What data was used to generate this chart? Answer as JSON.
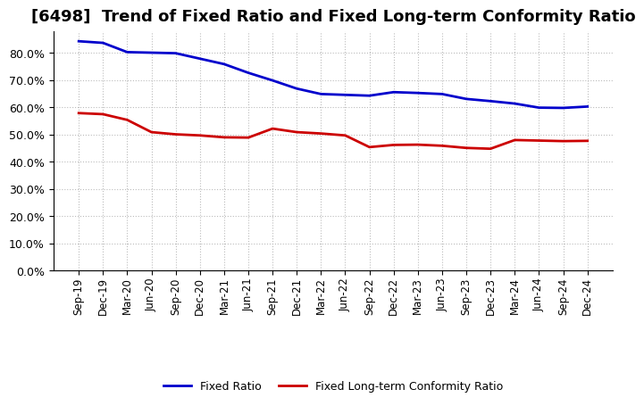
{
  "title": "[6498]  Trend of Fixed Ratio and Fixed Long-term Conformity Ratio",
  "x_labels": [
    "Sep-19",
    "Dec-19",
    "Mar-20",
    "Jun-20",
    "Sep-20",
    "Dec-20",
    "Mar-21",
    "Jun-21",
    "Sep-21",
    "Dec-21",
    "Mar-22",
    "Jun-22",
    "Sep-22",
    "Dec-22",
    "Mar-23",
    "Jun-23",
    "Sep-23",
    "Dec-23",
    "Mar-24",
    "Jun-24",
    "Sep-24",
    "Dec-24"
  ],
  "fixed_ratio": [
    0.842,
    0.836,
    0.802,
    0.8,
    0.798,
    0.778,
    0.758,
    0.726,
    0.698,
    0.668,
    0.648,
    0.645,
    0.642,
    0.655,
    0.652,
    0.648,
    0.63,
    0.622,
    0.613,
    0.598,
    0.597,
    0.602
  ],
  "fixed_lt_ratio": [
    0.578,
    0.574,
    0.553,
    0.508,
    0.5,
    0.496,
    0.489,
    0.488,
    0.521,
    0.508,
    0.503,
    0.496,
    0.453,
    0.461,
    0.462,
    0.458,
    0.45,
    0.447,
    0.479,
    0.477,
    0.475,
    0.476
  ],
  "fixed_ratio_color": "#0000CC",
  "fixed_lt_ratio_color": "#CC0000",
  "ylim_min": 0.0,
  "ylim_max": 0.88,
  "yticks": [
    0.0,
    0.1,
    0.2,
    0.3,
    0.4,
    0.5,
    0.6,
    0.7,
    0.8
  ],
  "background_color": "#FFFFFF",
  "grid_color": "#BBBBBB",
  "legend_fixed_ratio": "Fixed Ratio",
  "legend_fixed_lt_ratio": "Fixed Long-term Conformity Ratio",
  "title_fontsize": 13,
  "tick_fontsize": 8.5,
  "ytick_fontsize": 9
}
